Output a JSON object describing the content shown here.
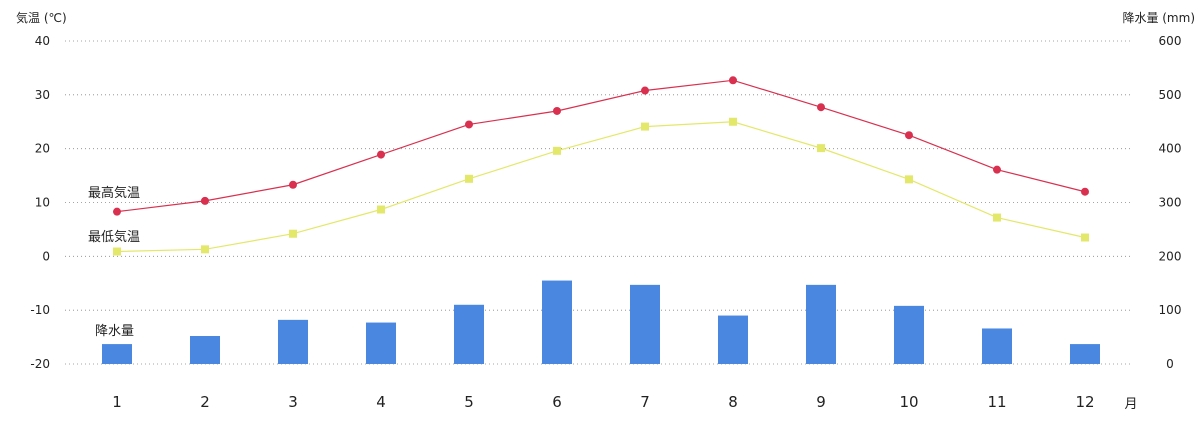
{
  "chart_data": {
    "type": "bar+line",
    "categories": [
      "1",
      "2",
      "3",
      "4",
      "5",
      "6",
      "7",
      "8",
      "9",
      "10",
      "11",
      "12"
    ],
    "x_unit": "月",
    "y_left": {
      "label": "気温 (℃)",
      "ticks": [
        "40",
        "30",
        "20",
        "10",
        "0",
        "-10",
        "-20"
      ],
      "min": -20,
      "max": 40
    },
    "y_right": {
      "label": "降水量 (mm)",
      "ticks": [
        "600",
        "500",
        "400",
        "300",
        "200",
        "100",
        "0"
      ],
      "min": 0,
      "max": 600
    },
    "series": [
      {
        "name": "最高気温",
        "kind": "line",
        "axis": "left",
        "marker": "circle",
        "color": "#d9304f",
        "values": [
          8.3,
          10.3,
          13.3,
          18.9,
          24.5,
          27.0,
          30.8,
          32.7,
          27.7,
          22.5,
          16.1,
          12.0
        ]
      },
      {
        "name": "最低気温",
        "kind": "line",
        "axis": "left",
        "marker": "square",
        "color": "#e3e86a",
        "values": [
          0.9,
          1.3,
          4.2,
          8.7,
          14.4,
          19.6,
          24.1,
          25.0,
          20.1,
          14.3,
          7.2,
          3.5
        ]
      },
      {
        "name": "降水量",
        "kind": "bar",
        "axis": "right",
        "color": "#4a87e0",
        "values": [
          37,
          52,
          82,
          77,
          110,
          155,
          147,
          90,
          147,
          108,
          66,
          37
        ]
      }
    ],
    "grid": true
  }
}
